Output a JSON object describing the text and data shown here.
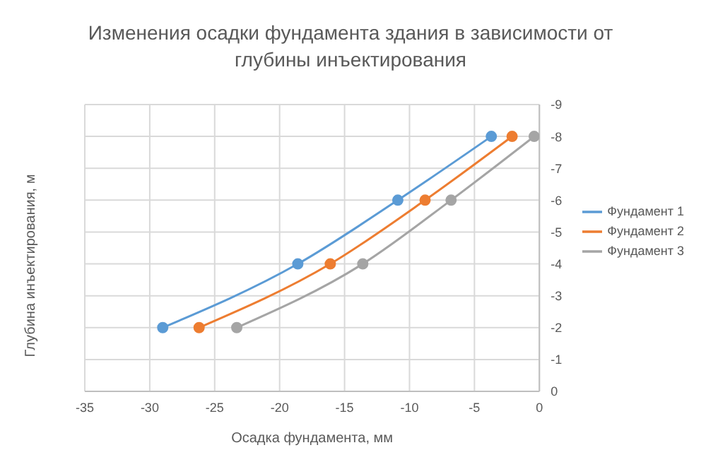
{
  "chart_data": {
    "type": "line",
    "title": "Изменения осадки фундамента здания в зависимости от глубины инъектирования",
    "xlabel": "Осадка фундамента, мм",
    "ylabel": "Глубина инъектирования, м",
    "series": [
      {
        "name": "Фундамент 1",
        "color": "#5b9bd5",
        "x": [
          -29.0,
          -18.6,
          -10.9,
          -3.7
        ],
        "values": [
          -2,
          -4,
          -6,
          -8
        ]
      },
      {
        "name": "Фундамент 2",
        "color": "#ed7d31",
        "x": [
          -26.2,
          -16.1,
          -8.8,
          -2.1
        ],
        "values": [
          -2,
          -4,
          -6,
          -8
        ]
      },
      {
        "name": "Фундамент 3",
        "color": "#a5a5a5",
        "x": [
          -23.3,
          -13.6,
          -6.8,
          -0.4
        ],
        "values": [
          -2,
          -4,
          -6,
          -8
        ]
      }
    ],
    "xlim": [
      -35,
      0
    ],
    "xticks": [
      -35,
      -30,
      -25,
      -20,
      -15,
      -10,
      -5,
      0
    ],
    "ylim": [
      0,
      -9
    ],
    "yticks": [
      0,
      -1,
      -2,
      -3,
      -4,
      -5,
      -6,
      -7,
      -8,
      -9
    ],
    "grid": true,
    "legend": "right",
    "marker": "circle",
    "line_style": "solid"
  }
}
